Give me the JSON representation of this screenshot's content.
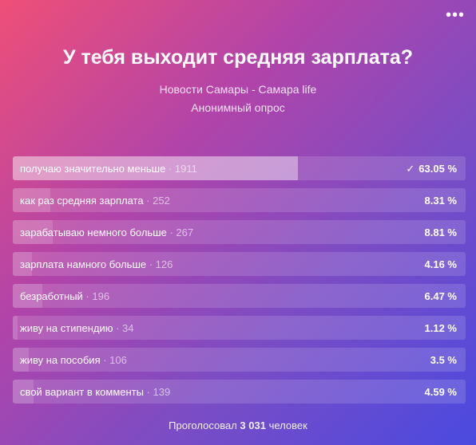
{
  "poll": {
    "title": "У тебя выходит средняя зарплата?",
    "source": "Новости Самары - Самара life",
    "type": "Анонимный опрос",
    "menu_icon": "•••",
    "options": [
      {
        "label": "получаю значительно меньше",
        "count": "· 1911",
        "percent": 63.05,
        "percent_text": "63.05 %",
        "chosen": true,
        "check": "✓"
      },
      {
        "label": "как раз средняя зарплата",
        "count": "· 252",
        "percent": 8.31,
        "percent_text": "8.31 %"
      },
      {
        "label": "зарабатываю немного больше",
        "count": "· 267",
        "percent": 8.81,
        "percent_text": "8.81 %"
      },
      {
        "label": "зарплата намного больше",
        "count": "· 126",
        "percent": 4.16,
        "percent_text": "4.16 %"
      },
      {
        "label": "безработный",
        "count": "· 196",
        "percent": 6.47,
        "percent_text": "6.47 %"
      },
      {
        "label": "живу на стипендию",
        "count": "· 34",
        "percent": 1.12,
        "percent_text": "1.12 %"
      },
      {
        "label": "живу на пособия",
        "count": "· 106",
        "percent": 3.5,
        "percent_text": "3.5 %"
      },
      {
        "label": "свой вариант в комменты",
        "count": "· 139",
        "percent": 4.59,
        "percent_text": "4.59 %"
      }
    ],
    "footer": {
      "prefix": "Проголосовал",
      "total": "3 031",
      "suffix": "человек"
    }
  }
}
